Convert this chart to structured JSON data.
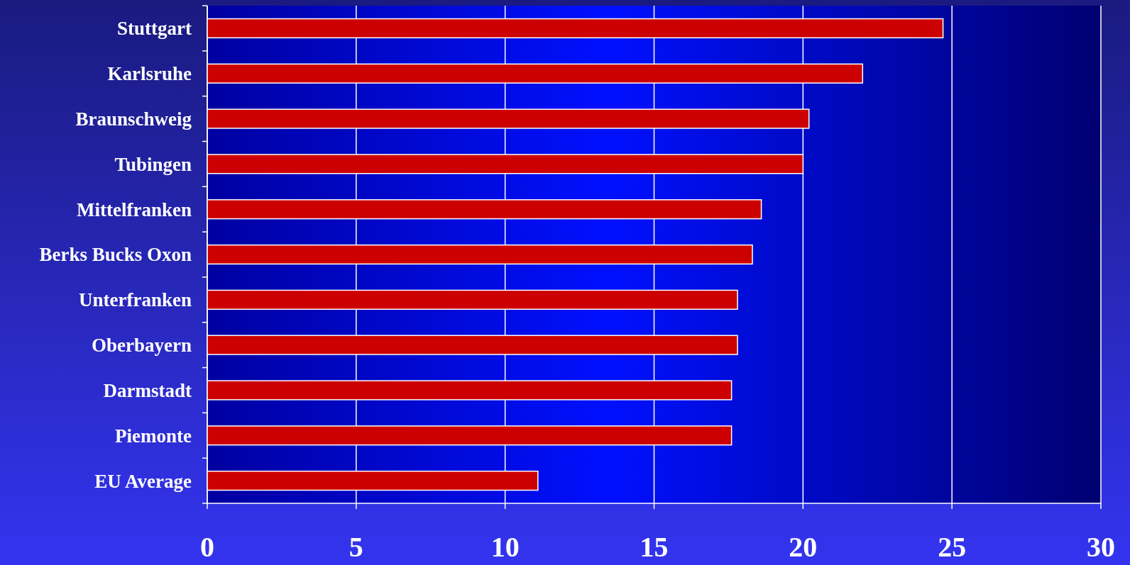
{
  "chart_data": {
    "type": "bar",
    "orientation": "horizontal",
    "categories": [
      "Stuttgart",
      "Karlsruhe",
      "Braunschweig",
      "Tubingen",
      "Mittelfranken",
      "Berks Bucks Oxon",
      "Unterfranken",
      "Oberbayern",
      "Darmstadt",
      "Piemonte",
      "EU Average"
    ],
    "values": [
      24.7,
      22.0,
      20.2,
      20.0,
      18.6,
      18.3,
      17.8,
      17.8,
      17.6,
      17.6,
      11.1
    ],
    "color": "#cc0000",
    "xlim": [
      0,
      30
    ],
    "xticks": [
      0,
      5,
      10,
      15,
      20,
      25,
      30
    ],
    "grid": "x"
  }
}
